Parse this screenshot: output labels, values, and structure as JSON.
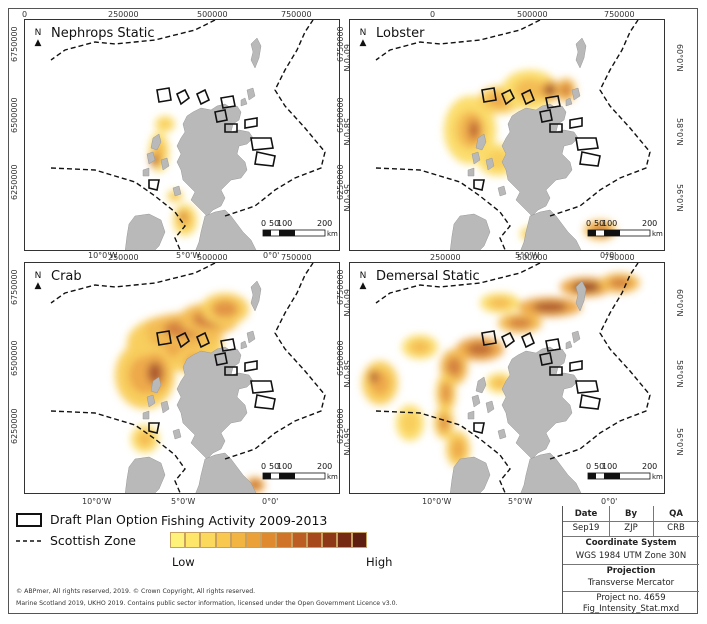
{
  "panels": [
    {
      "title": "Nephrops Static",
      "name": "nephrops"
    },
    {
      "title": "Lobster",
      "name": "lobster"
    },
    {
      "title": "Crab",
      "name": "crab"
    },
    {
      "title": "Demersal Static",
      "name": "demersal"
    }
  ],
  "north_label": "N",
  "ticks": {
    "easting": [
      "0",
      "250000",
      "500000",
      "750000"
    ],
    "northing": [
      "6750000",
      "6500000",
      "6250000"
    ],
    "lat": [
      "60°0'N",
      "58°0'N",
      "56°0'N"
    ],
    "lon": [
      "10°0'W",
      "5°0'W",
      "0°0'"
    ]
  },
  "scalebar": {
    "labels": [
      "0",
      "50",
      "100",
      "200"
    ],
    "unit": "km"
  },
  "legend": {
    "draft_plan": "Draft Plan Option",
    "scottish_zone": "Scottish Zone",
    "fishing_title": "Fishing Activity 2009-2013",
    "low": "Low",
    "high": "High",
    "ramp_colors": [
      "#fff27a",
      "#fde66a",
      "#fbd95c",
      "#f8c94e",
      "#f3b542",
      "#eca038",
      "#e08a30",
      "#d0742a",
      "#bc5e24",
      "#a64a1e",
      "#8e3818",
      "#762a14",
      "#5e1e10"
    ]
  },
  "copyright": [
    "© ABPmer, All rights reserved, 2019. © Crown Copyright, All rights reserved.",
    "Marine Scotland 2019, UKHO 2019. Contains public sector information, licensed under the Open Government Licence v3.0."
  ],
  "info": {
    "date_label": "Date",
    "by_label": "By",
    "qa_label": "QA",
    "date": "Sep19",
    "by": "ZJP",
    "qa": "CRB",
    "coord_label": "Coordinate System",
    "coord": "WGS 1984 UTM Zone 30N",
    "proj_label": "Projection",
    "proj": "Transverse Mercator",
    "project_no": "Project no. 4659",
    "file": "Fig_Intensity_Stat.mxd"
  },
  "colors": {
    "land": "#b9b9b9",
    "sea": "#ffffff",
    "heat_low": "#fff27a",
    "heat_high": "#5e1e10",
    "zone_line": "#111111"
  }
}
